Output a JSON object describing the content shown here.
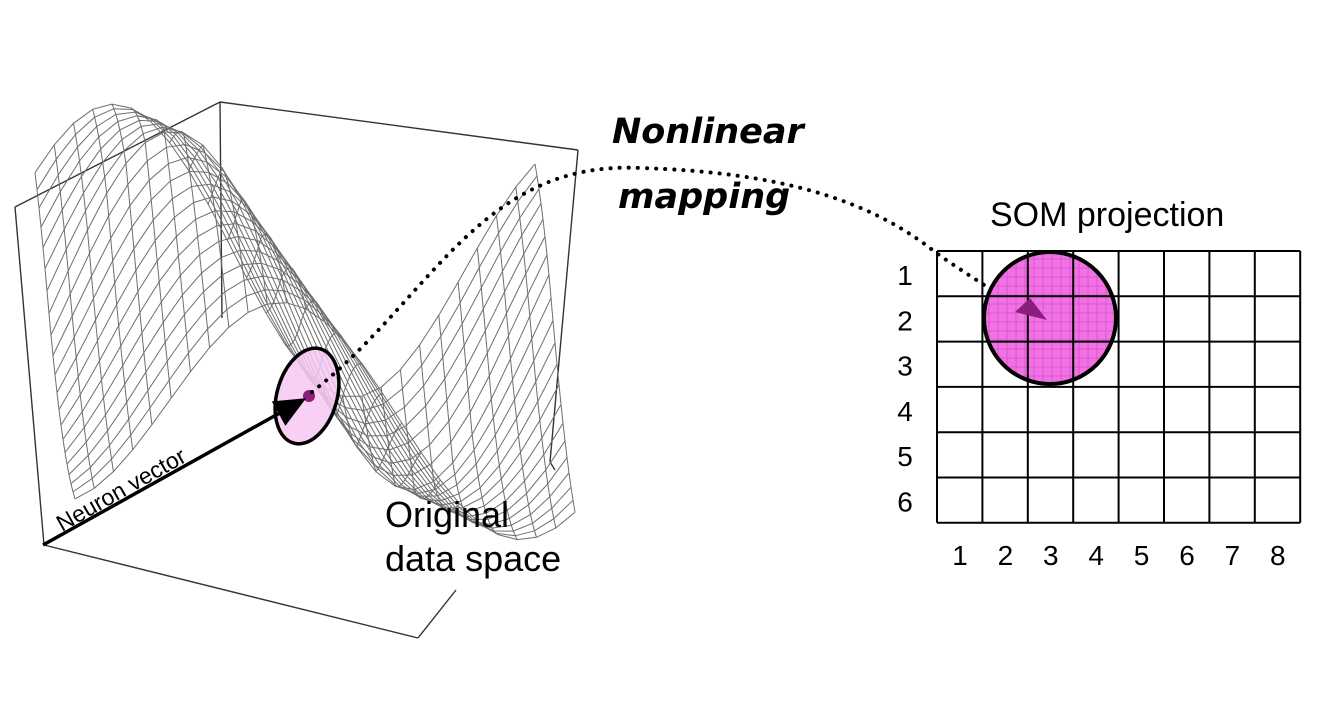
{
  "labels": {
    "mapping_line1": "Nonlinear",
    "mapping_line2": "mapping",
    "som_title": "SOM projection",
    "neuron_vector": "Neuron vector",
    "original_line1": "Original",
    "original_line2": "data space"
  },
  "grid": {
    "rows": 6,
    "cols": 8,
    "row_labels": [
      "1",
      "2",
      "3",
      "4",
      "5",
      "6"
    ],
    "col_labels": [
      "1",
      "2",
      "3",
      "4",
      "5",
      "6",
      "7",
      "8"
    ],
    "highlight": {
      "center_col": 3,
      "center_row": 2
    }
  },
  "colors": {
    "highlight_fill": "#f272e6",
    "highlight_light": "#f6c8f2",
    "marker": "#8a1e7a",
    "line": "#000000",
    "mesh": "#6e6e6e"
  }
}
